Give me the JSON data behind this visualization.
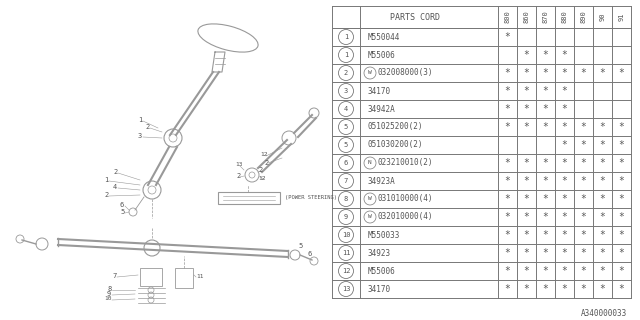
{
  "bg_color": "#ffffff",
  "line_color": "#777777",
  "text_color": "#555555",
  "table": {
    "header_years": [
      "800",
      "860",
      "870",
      "880",
      "890",
      "90",
      "91"
    ],
    "rows": [
      {
        "num": "1",
        "prefix": "",
        "part": "M550044",
        "marks": [
          1,
          0,
          0,
          0,
          0,
          0,
          0
        ]
      },
      {
        "num": "1",
        "prefix": "",
        "part": "M55006",
        "marks": [
          0,
          1,
          1,
          1,
          0,
          0,
          0
        ]
      },
      {
        "num": "2",
        "prefix": "W",
        "part": "032008000(3)",
        "marks": [
          1,
          1,
          1,
          1,
          1,
          1,
          1
        ]
      },
      {
        "num": "3",
        "prefix": "",
        "part": "34170",
        "marks": [
          1,
          1,
          1,
          1,
          0,
          0,
          0
        ]
      },
      {
        "num": "4",
        "prefix": "",
        "part": "34942A",
        "marks": [
          1,
          1,
          1,
          1,
          0,
          0,
          0
        ]
      },
      {
        "num": "5",
        "prefix": "",
        "part": "051025200(2)",
        "marks": [
          1,
          1,
          1,
          1,
          1,
          1,
          1
        ]
      },
      {
        "num": "5",
        "prefix": "",
        "part": "051030200(2)",
        "marks": [
          0,
          0,
          0,
          1,
          1,
          1,
          1
        ]
      },
      {
        "num": "6",
        "prefix": "N",
        "part": "023210010(2)",
        "marks": [
          1,
          1,
          1,
          1,
          1,
          1,
          1
        ]
      },
      {
        "num": "7",
        "prefix": "",
        "part": "34923A",
        "marks": [
          1,
          1,
          1,
          1,
          1,
          1,
          1
        ]
      },
      {
        "num": "8",
        "prefix": "W",
        "part": "031010000(4)",
        "marks": [
          1,
          1,
          1,
          1,
          1,
          1,
          1
        ]
      },
      {
        "num": "9",
        "prefix": "W",
        "part": "032010000(4)",
        "marks": [
          1,
          1,
          1,
          1,
          1,
          1,
          1
        ]
      },
      {
        "num": "10",
        "prefix": "",
        "part": "M550033",
        "marks": [
          1,
          1,
          1,
          1,
          1,
          1,
          1
        ]
      },
      {
        "num": "11",
        "prefix": "",
        "part": "34923",
        "marks": [
          1,
          1,
          1,
          1,
          1,
          1,
          1
        ]
      },
      {
        "num": "12",
        "prefix": "",
        "part": "M55006",
        "marks": [
          1,
          1,
          1,
          1,
          1,
          1,
          1
        ]
      },
      {
        "num": "13",
        "prefix": "",
        "part": "34170",
        "marks": [
          1,
          1,
          1,
          1,
          1,
          1,
          1
        ]
      }
    ]
  },
  "footer": "A340000033"
}
